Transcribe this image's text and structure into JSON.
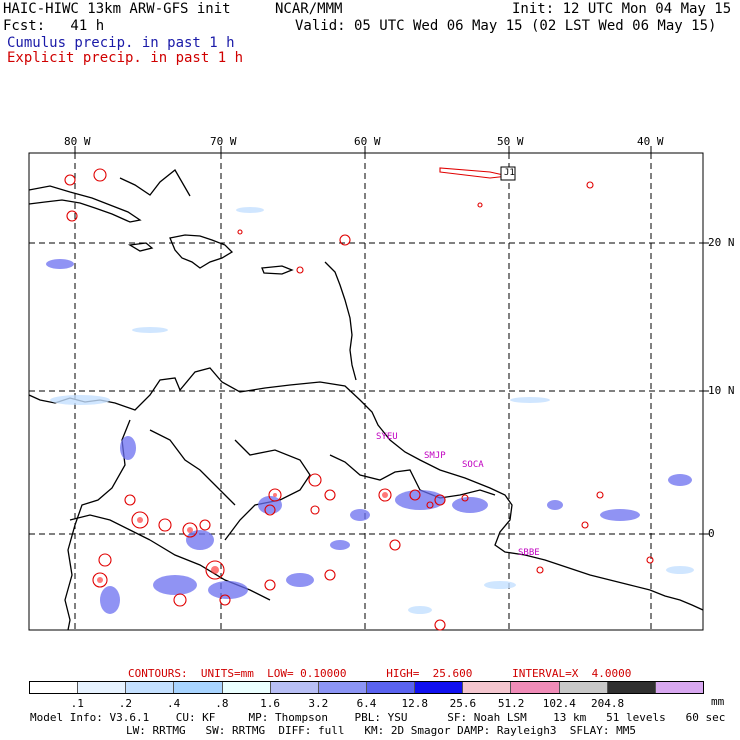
{
  "header": {
    "model": "HAIC-HIWC 13km ARW-GFS init",
    "org": "NCAR/MMM",
    "init": "Init: 12 UTC Mon 04 May 15",
    "fcst": "Fcst:   41 h",
    "valid": "Valid: 05 UTC Wed 06 May 15 (02 LST Wed 06 May 15)",
    "cumulus": "Cumulus precip. in past 1 h",
    "explicit": "Explicit precip. in past 1 h"
  },
  "map": {
    "lon_labels": [
      "80 W",
      "70 W",
      "60 W",
      "50 W",
      "40 W"
    ],
    "lat_labels": [
      "20 N",
      "10 N",
      "0"
    ],
    "stations": [
      "SYEU",
      "SMJP",
      "SOCA",
      "SBBE"
    ],
    "marker": "J1"
  },
  "contours": {
    "line": "CONTOURS:  UNITS=mm  LOW= 0.10000      HIGH=  25.600      INTERVAL=X  4.0000"
  },
  "colorbar": {
    "colors": [
      "#ffffff",
      "#e6f2ff",
      "#c4e0ff",
      "#a8d4ff",
      "#eaffff",
      "#b8bff5",
      "#8c95f5",
      "#5a63f0",
      "#1010f0",
      "#f4c6cf",
      "#f08cb8",
      "#c8c8c8",
      "#303030",
      "#d8a8f0"
    ],
    "ticks": [
      ".1",
      ".2",
      ".4",
      ".8",
      "1.6",
      "3.2",
      "6.4",
      "12.8",
      "25.6",
      "51.2",
      "102.4",
      "204.8"
    ],
    "units": "mm"
  },
  "footer": {
    "line1": "Model Info: V3.6.1    CU: KF     MP: Thompson    PBL: YSU      SF: Noah LSM    13 km   51 levels   60 sec",
    "line2": "LW: RRTMG   SW: RRTMG  DIFF: full   KM: 2D Smagor DAMP: Rayleigh3  SFLAY: MM5"
  }
}
